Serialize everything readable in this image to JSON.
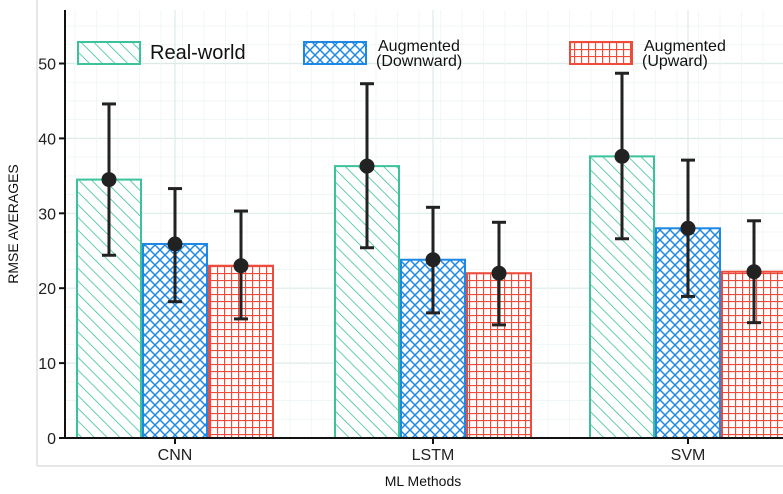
{
  "chart_data": {
    "type": "bar",
    "title": "",
    "xlabel": "ML Methods",
    "ylabel": "RMSE AVERAGES",
    "categories": [
      "CNN",
      "LSTM",
      "SVM"
    ],
    "ylim": [
      0,
      56
    ],
    "yticks": [
      0,
      10,
      20,
      30,
      40,
      50
    ],
    "grid": true,
    "legend_position": "top",
    "series": [
      {
        "name": "Real-world",
        "legend_lines": [
          "Real-world"
        ],
        "color": "#3bc29a",
        "pattern": "diagonal-hatch",
        "values": [
          34.5,
          36.3,
          37.6
        ],
        "error_low": [
          24.4,
          25.4,
          26.6
        ],
        "error_high": [
          44.6,
          47.3,
          48.7
        ]
      },
      {
        "name": "Augmented (Downward)",
        "legend_lines": [
          "Augmented",
          "(Downward)"
        ],
        "color": "#1e88e5",
        "pattern": "crosshatch",
        "values": [
          25.9,
          23.8,
          28.0
        ],
        "error_low": [
          18.2,
          16.7,
          18.9
        ],
        "error_high": [
          33.3,
          30.8,
          37.1
        ]
      },
      {
        "name": "Augmented (Upward)",
        "legend_lines": [
          "Augmented",
          "(Upward)"
        ],
        "color": "#ee4b3b",
        "pattern": "grid",
        "values": [
          23.0,
          22.0,
          22.2
        ],
        "error_low": [
          15.9,
          15.1,
          15.4
        ],
        "error_high": [
          30.3,
          28.8,
          29.0
        ]
      }
    ]
  }
}
